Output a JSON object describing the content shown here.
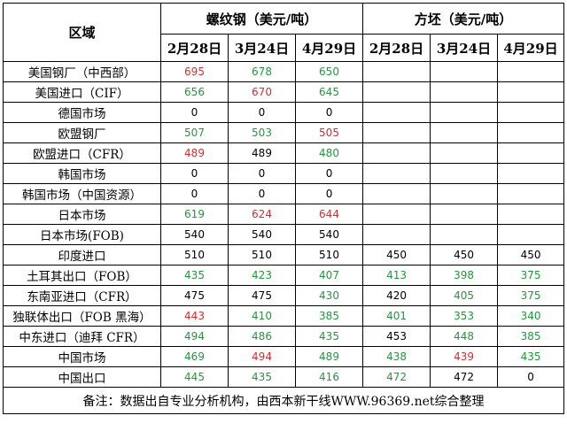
{
  "header": {
    "region_label": "区域",
    "group_rebar": "螺纹钢（美元/吨）",
    "group_billet": "方坯（美元/吨）",
    "dates": [
      "2月28日",
      "3月24日",
      "4月29日",
      "2月28日",
      "3月24日",
      "4月29日"
    ]
  },
  "colors": {
    "red": "#e0282d",
    "green": "#1f9a3a",
    "black": "#000000"
  },
  "rows": [
    {
      "region": "美国钢厂（中西部）",
      "cells": [
        {
          "v": "695",
          "c": "red"
        },
        {
          "v": "678",
          "c": "green"
        },
        {
          "v": "650",
          "c": "green"
        },
        {
          "v": "",
          "c": "black"
        },
        {
          "v": "",
          "c": "black"
        },
        {
          "v": "",
          "c": "black"
        }
      ]
    },
    {
      "region": "美国进口（CIF）",
      "cells": [
        {
          "v": "656",
          "c": "green"
        },
        {
          "v": "670",
          "c": "red"
        },
        {
          "v": "645",
          "c": "green"
        },
        {
          "v": "",
          "c": "black"
        },
        {
          "v": "",
          "c": "black"
        },
        {
          "v": "",
          "c": "black"
        }
      ]
    },
    {
      "region": "德国市场",
      "cells": [
        {
          "v": "0",
          "c": "black"
        },
        {
          "v": "0",
          "c": "black"
        },
        {
          "v": "0",
          "c": "black"
        },
        {
          "v": "",
          "c": "black"
        },
        {
          "v": "",
          "c": "black"
        },
        {
          "v": "",
          "c": "black"
        }
      ]
    },
    {
      "region": "欧盟钢厂",
      "cells": [
        {
          "v": "507",
          "c": "green"
        },
        {
          "v": "503",
          "c": "green"
        },
        {
          "v": "505",
          "c": "red"
        },
        {
          "v": "",
          "c": "black"
        },
        {
          "v": "",
          "c": "black"
        },
        {
          "v": "",
          "c": "black"
        }
      ]
    },
    {
      "region": "欧盟进口（CFR）",
      "cells": [
        {
          "v": "489",
          "c": "red"
        },
        {
          "v": "489",
          "c": "black"
        },
        {
          "v": "480",
          "c": "green"
        },
        {
          "v": "",
          "c": "black"
        },
        {
          "v": "",
          "c": "black"
        },
        {
          "v": "",
          "c": "black"
        }
      ]
    },
    {
      "region": "韩国市场",
      "cells": [
        {
          "v": "0",
          "c": "black"
        },
        {
          "v": "0",
          "c": "black"
        },
        {
          "v": "0",
          "c": "black"
        },
        {
          "v": "",
          "c": "black"
        },
        {
          "v": "",
          "c": "black"
        },
        {
          "v": "",
          "c": "black"
        }
      ]
    },
    {
      "region": "韩国市场（中国资源）",
      "cells": [
        {
          "v": "0",
          "c": "black"
        },
        {
          "v": "0",
          "c": "black"
        },
        {
          "v": "0",
          "c": "black"
        },
        {
          "v": "",
          "c": "black"
        },
        {
          "v": "",
          "c": "black"
        },
        {
          "v": "",
          "c": "black"
        }
      ]
    },
    {
      "region": "日本市场",
      "cells": [
        {
          "v": "619",
          "c": "green"
        },
        {
          "v": "624",
          "c": "red"
        },
        {
          "v": "644",
          "c": "red"
        },
        {
          "v": "",
          "c": "black"
        },
        {
          "v": "",
          "c": "black"
        },
        {
          "v": "",
          "c": "black"
        }
      ]
    },
    {
      "region": "日本市场(FOB)",
      "cells": [
        {
          "v": "540",
          "c": "black"
        },
        {
          "v": "540",
          "c": "black"
        },
        {
          "v": "540",
          "c": "black"
        },
        {
          "v": "",
          "c": "black"
        },
        {
          "v": "",
          "c": "black"
        },
        {
          "v": "",
          "c": "black"
        }
      ]
    },
    {
      "region": "印度进口",
      "cells": [
        {
          "v": "510",
          "c": "black"
        },
        {
          "v": "510",
          "c": "black"
        },
        {
          "v": "510",
          "c": "black"
        },
        {
          "v": "450",
          "c": "black"
        },
        {
          "v": "450",
          "c": "black"
        },
        {
          "v": "450",
          "c": "black"
        }
      ]
    },
    {
      "region": "土耳其出口（FOB）",
      "cells": [
        {
          "v": "435",
          "c": "green"
        },
        {
          "v": "423",
          "c": "green"
        },
        {
          "v": "407",
          "c": "green"
        },
        {
          "v": "413",
          "c": "green"
        },
        {
          "v": "398",
          "c": "green"
        },
        {
          "v": "375",
          "c": "green"
        }
      ]
    },
    {
      "region": "东南亚进口（CFR）",
      "cells": [
        {
          "v": "475",
          "c": "black"
        },
        {
          "v": "475",
          "c": "black"
        },
        {
          "v": "430",
          "c": "green"
        },
        {
          "v": "420",
          "c": "black"
        },
        {
          "v": "405",
          "c": "green"
        },
        {
          "v": "375",
          "c": "green"
        }
      ]
    },
    {
      "region": "独联体出口（FOB 黑海）",
      "cells": [
        {
          "v": "443",
          "c": "red"
        },
        {
          "v": "410",
          "c": "green"
        },
        {
          "v": "385",
          "c": "green"
        },
        {
          "v": "401",
          "c": "green"
        },
        {
          "v": "353",
          "c": "green"
        },
        {
          "v": "340",
          "c": "green"
        }
      ]
    },
    {
      "region": "中东进口（迪拜 CFR）",
      "cells": [
        {
          "v": "494",
          "c": "green"
        },
        {
          "v": "486",
          "c": "green"
        },
        {
          "v": "435",
          "c": "green"
        },
        {
          "v": "453",
          "c": "black"
        },
        {
          "v": "448",
          "c": "green"
        },
        {
          "v": "385",
          "c": "green"
        }
      ]
    },
    {
      "region": "中国市场",
      "cells": [
        {
          "v": "469",
          "c": "green"
        },
        {
          "v": "494",
          "c": "red"
        },
        {
          "v": "489",
          "c": "green"
        },
        {
          "v": "438",
          "c": "green"
        },
        {
          "v": "439",
          "c": "red"
        },
        {
          "v": "435",
          "c": "green"
        }
      ]
    },
    {
      "region": "中国出口",
      "cells": [
        {
          "v": "445",
          "c": "green"
        },
        {
          "v": "435",
          "c": "green"
        },
        {
          "v": "416",
          "c": "green"
        },
        {
          "v": "472",
          "c": "green"
        },
        {
          "v": "472",
          "c": "black"
        },
        {
          "v": "0",
          "c": "black"
        }
      ]
    }
  ],
  "note": "备注：数据出自专业分析机构，由西本新干线WWW.96369.net综合整理"
}
